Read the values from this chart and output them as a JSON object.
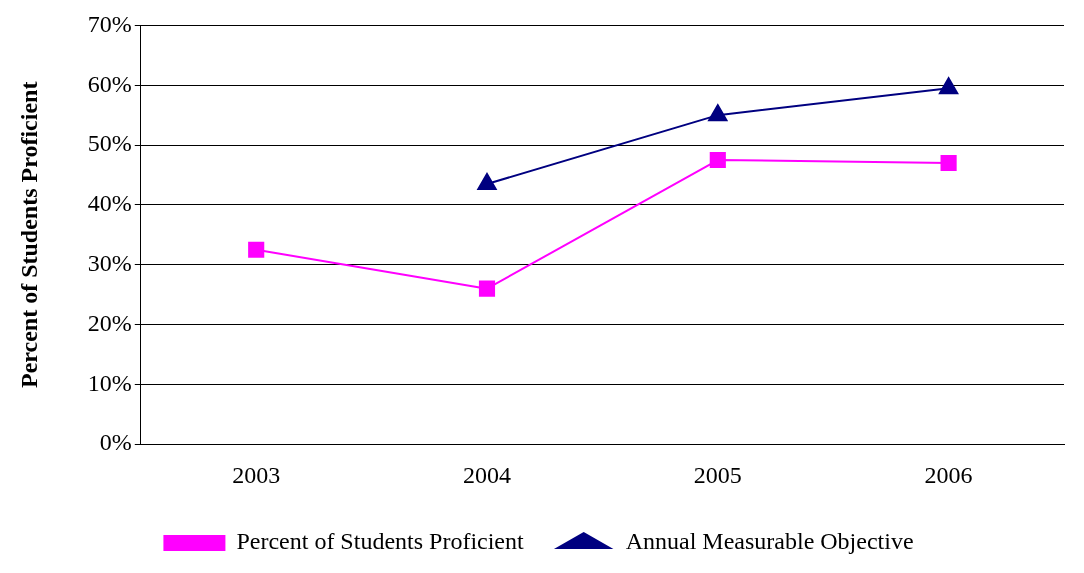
{
  "chart_data": {
    "type": "line",
    "ylabel": "Percent of Students Proficient",
    "categories": [
      "2003",
      "2004",
      "2005",
      "2006"
    ],
    "series": [
      {
        "name": "Percent of Students Proficient",
        "color": "#ff00ff",
        "marker": "square",
        "values": [
          32.5,
          26,
          47.5,
          47
        ]
      },
      {
        "name": "Annual Measurable Objective",
        "color": "#000080",
        "marker": "triangle",
        "values": [
          null,
          43.5,
          55,
          59.5
        ]
      }
    ],
    "ylim": [
      0,
      70
    ],
    "yticks": [
      {
        "value": 0,
        "label": "0%"
      },
      {
        "value": 10,
        "label": "10%"
      },
      {
        "value": 20,
        "label": "20%"
      },
      {
        "value": 30,
        "label": "30%"
      },
      {
        "value": 40,
        "label": "40%"
      },
      {
        "value": 50,
        "label": "50%"
      },
      {
        "value": 60,
        "label": "60%"
      },
      {
        "value": 70,
        "label": "70%"
      }
    ],
    "grid": "y",
    "legend": "bottom",
    "line_style": "solid"
  }
}
